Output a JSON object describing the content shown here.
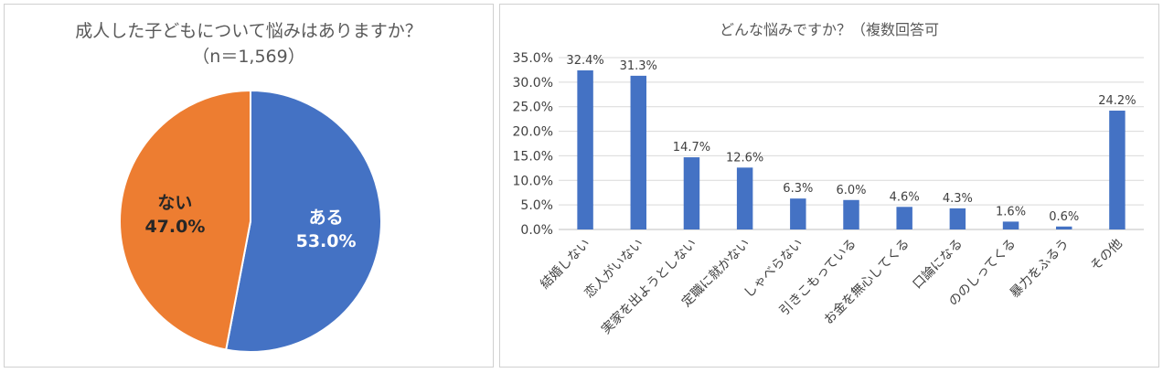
{
  "chart_data": [
    {
      "type": "pie",
      "title": "成人した子どもについて悩みはありますか？",
      "subtitle": "（n＝1,569）",
      "slices": [
        {
          "label": "ある",
          "value": 53.0,
          "display": "53.0%",
          "color": "#4472c4",
          "text_color": "#ffffff"
        },
        {
          "label": "ない",
          "value": 47.0,
          "display": "47.0%",
          "color": "#ed7d31",
          "text_color": "#262626"
        }
      ]
    },
    {
      "type": "bar",
      "title": "どんな悩みですか？（複数回答可",
      "categories": [
        "結婚しない",
        "恋人がいない",
        "実家を出ようとしない",
        "定職に就かない",
        "しゃべらない",
        "引きこもっている",
        "お金を無心してくる",
        "口論になる",
        "ののしってくる",
        "暴力をふるう",
        "その他"
      ],
      "values": [
        32.4,
        31.3,
        14.7,
        12.6,
        6.3,
        6.0,
        4.6,
        4.3,
        1.6,
        0.6,
        24.2
      ],
      "value_labels": [
        "32.4%",
        "31.3%",
        "14.7%",
        "12.6%",
        "6.3%",
        "6.0%",
        "4.6%",
        "4.3%",
        "1.6%",
        "0.6%",
        "24.2%"
      ],
      "yticks": [
        "0.0%",
        "5.0%",
        "10.0%",
        "15.0%",
        "20.0%",
        "25.0%",
        "30.0%",
        "35.0%"
      ],
      "ylim": [
        0,
        35
      ],
      "grid": true,
      "bar_color": "#4472c4"
    }
  ]
}
